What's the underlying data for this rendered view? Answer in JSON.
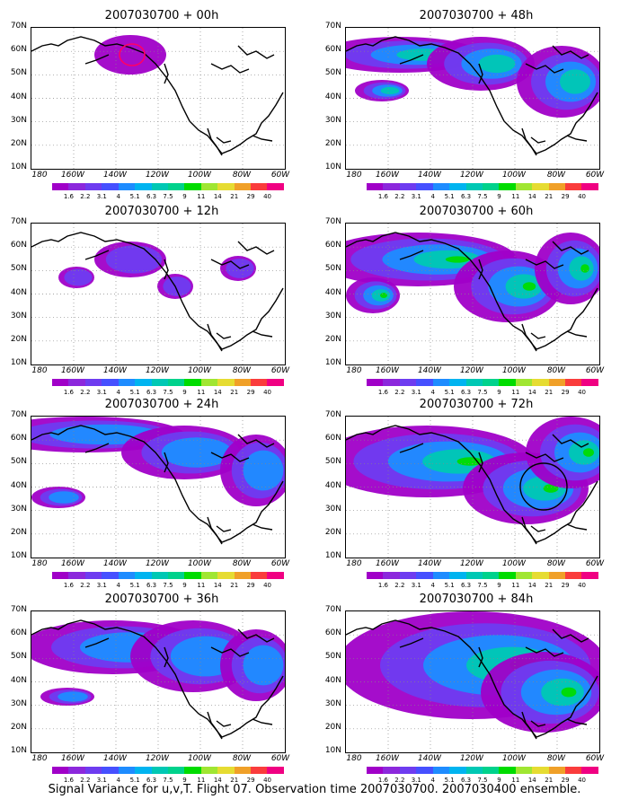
{
  "panels": [
    {
      "title": "2007030700 + 00h",
      "level": 0
    },
    {
      "title": "2007030700 + 48h",
      "level": 3
    },
    {
      "title": "2007030700 + 12h",
      "level": 1
    },
    {
      "title": "2007030700 + 60h",
      "level": 4
    },
    {
      "title": "2007030700 + 24h",
      "level": 2
    },
    {
      "title": "2007030700 + 72h",
      "level": 4
    },
    {
      "title": "2007030700 + 36h",
      "level": 2
    },
    {
      "title": "2007030700 + 84h",
      "level": 5
    }
  ],
  "lat_labels": [
    "70N",
    "60N",
    "50N",
    "40N",
    "30N",
    "20N",
    "10N"
  ],
  "lon_labels": [
    "180",
    "160W",
    "140W",
    "120W",
    "100W",
    "80W",
    "60W"
  ],
  "colorbar_labels": [
    "1.6",
    "2.2",
    "3.1",
    "4",
    "5.1",
    "6.3",
    "7.5",
    "9",
    "11",
    "14",
    "21",
    "29",
    "40"
  ],
  "colorbar_colors": [
    "#a000c8",
    "#8c28dc",
    "#6e3cf0",
    "#4650ff",
    "#1e8cff",
    "#00b4f0",
    "#00c8b4",
    "#00d28c",
    "#00dc00",
    "#a0e632",
    "#e6dc32",
    "#f0a028",
    "#fa3c3c",
    "#f00082"
  ],
  "footer": "Signal Variance for u,v,T. Flight 07. Observation time 2007030700. 2007030400 ensemble."
}
